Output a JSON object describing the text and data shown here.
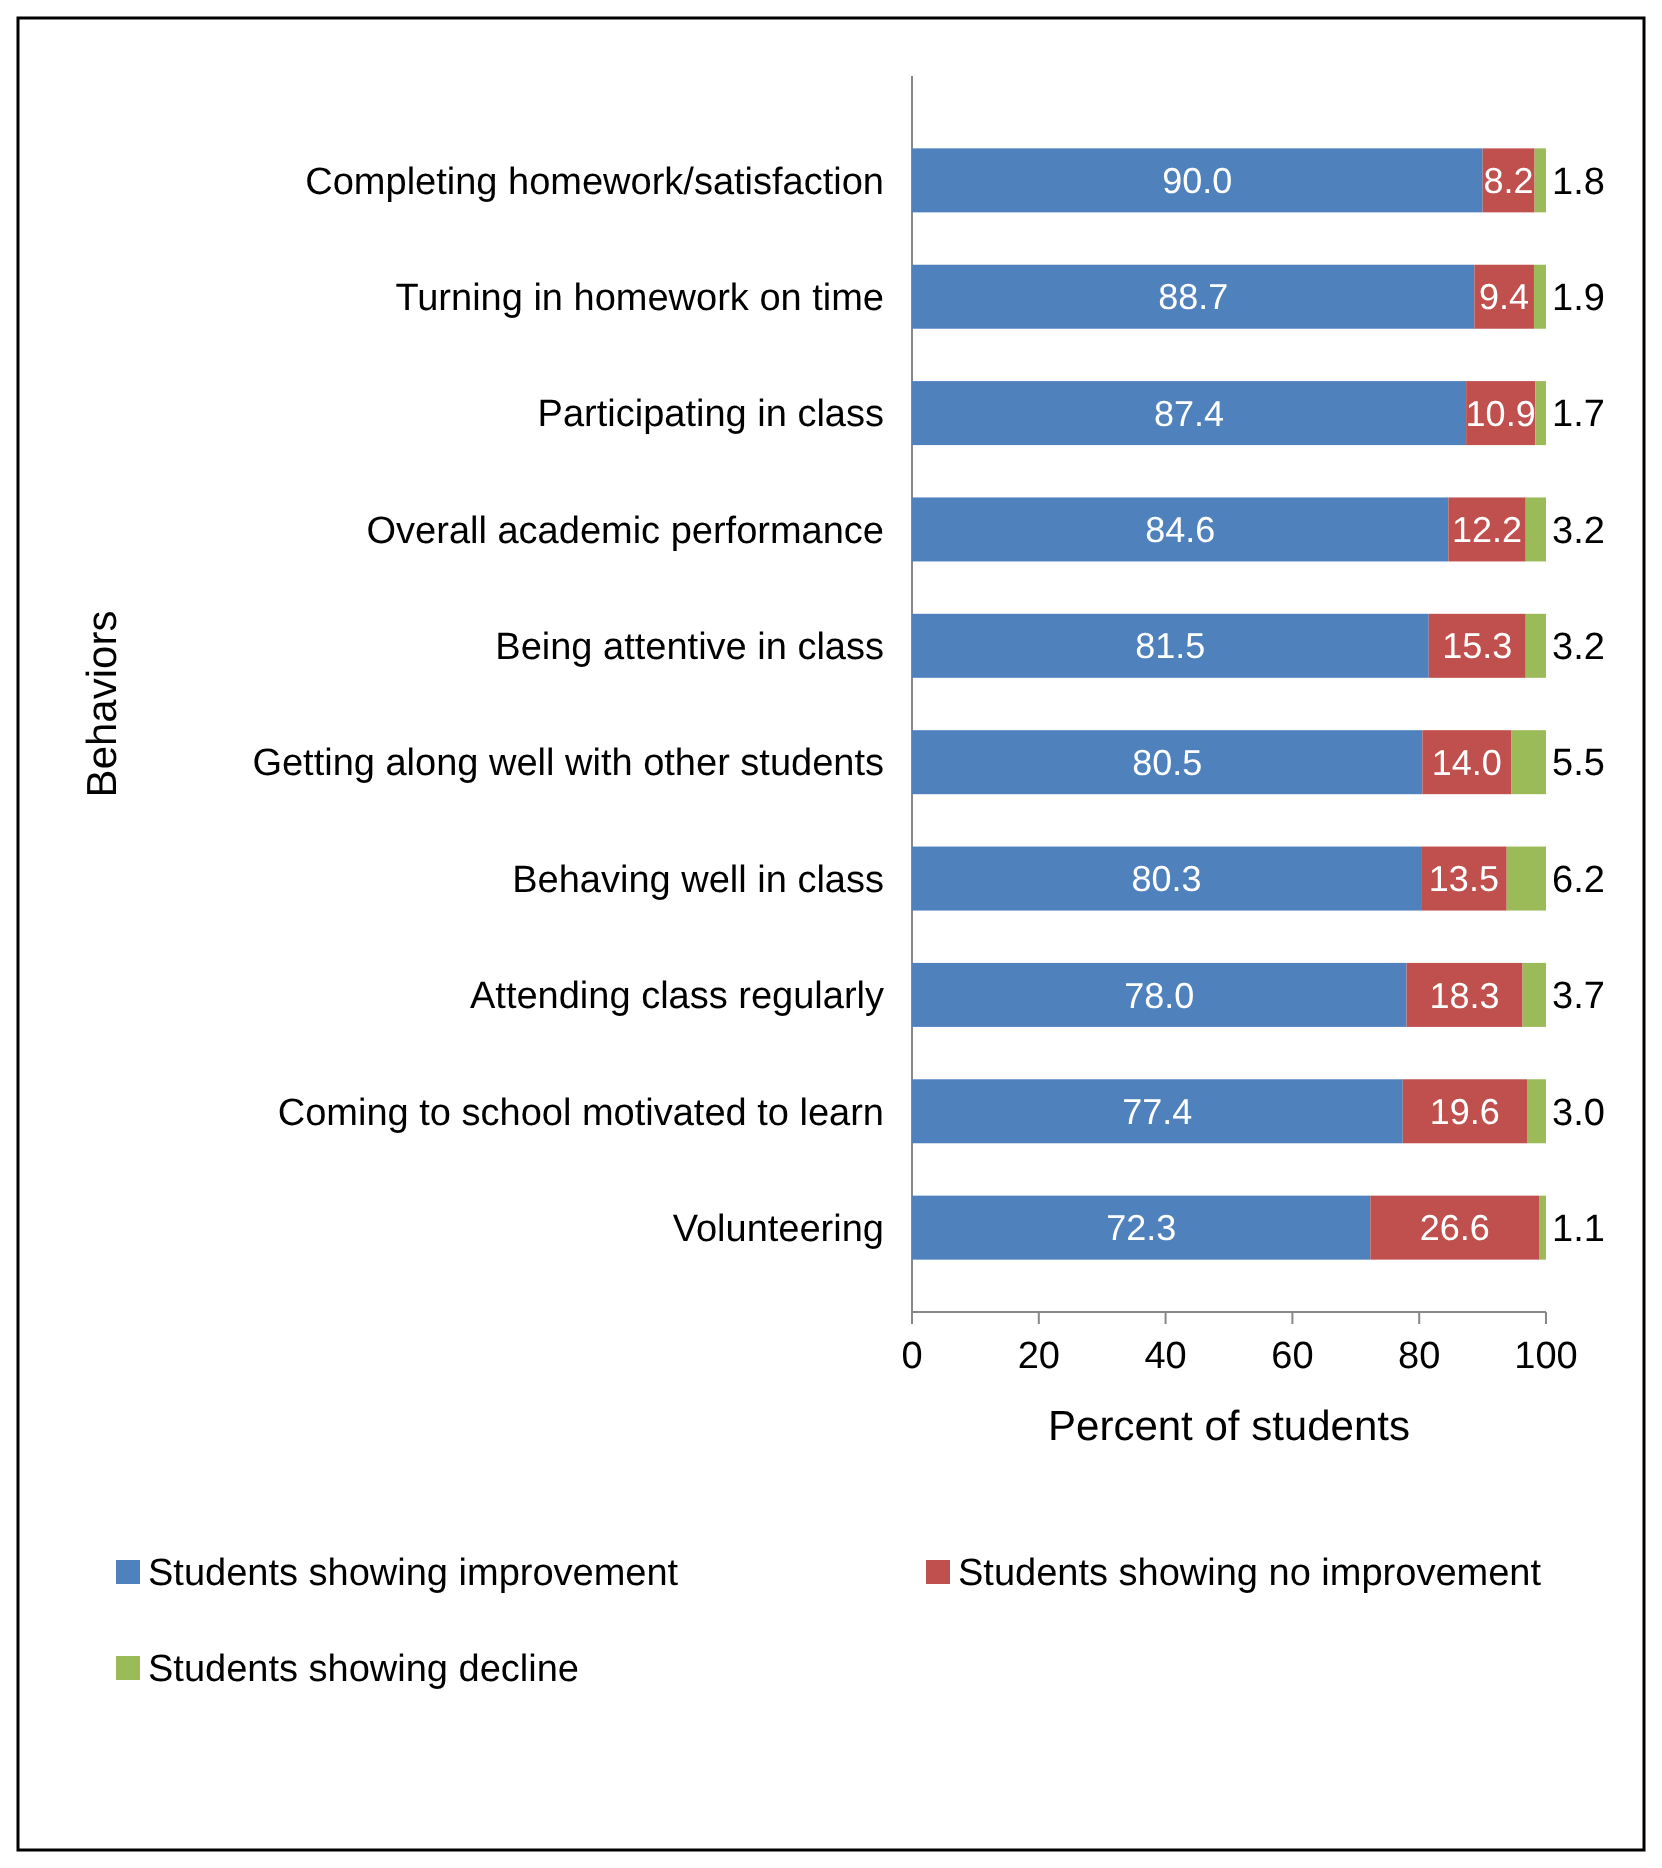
{
  "chart_data": {
    "type": "bar",
    "orientation": "horizontal",
    "stacked": true,
    "xlabel": "Percent of students",
    "ylabel": "Behaviors",
    "categories": [
      "Completing homework/satisfaction",
      "Turning in homework on time",
      "Participating in class",
      "Overall academic performance",
      "Being attentive in class",
      "Getting along well with other students",
      "Behaving well in class",
      "Attending class regularly",
      "Coming to school motivated to learn",
      "Volunteering"
    ],
    "series": [
      {
        "name": "Students showing improvement",
        "color": "#4f81bd",
        "values": [
          90.0,
          88.7,
          87.4,
          84.6,
          81.5,
          80.5,
          80.3,
          78.0,
          77.4,
          72.3
        ],
        "value_labels": [
          "90.0",
          "88.7",
          "87.4",
          "84.6",
          "81.5",
          "80.5",
          "80.3",
          "78.0",
          "77.4",
          "72.3"
        ]
      },
      {
        "name": "Students showing no improvement",
        "color": "#c0504d",
        "values": [
          8.2,
          9.4,
          10.9,
          12.2,
          15.3,
          14.0,
          13.5,
          18.3,
          19.6,
          26.6
        ],
        "value_labels": [
          "8.2",
          "9.4",
          "10.9",
          "12.2",
          "15.3",
          "14.0",
          "13.5",
          "18.3",
          "19.6",
          "26.6"
        ]
      },
      {
        "name": "Students showing decline",
        "color": "#9bbb59",
        "values": [
          1.8,
          1.9,
          1.7,
          3.2,
          3.2,
          5.5,
          6.2,
          3.7,
          3.0,
          1.1
        ],
        "value_labels": [
          "1.8",
          "1.9",
          "1.7",
          "3.2",
          "3.2",
          "5.5",
          "6.2",
          "3.7",
          "3.0",
          "1.1"
        ]
      }
    ],
    "xlim": [
      0,
      100
    ],
    "xticks": [
      0,
      20,
      40,
      60,
      80,
      100
    ],
    "grid": false,
    "legend": "bottom"
  }
}
